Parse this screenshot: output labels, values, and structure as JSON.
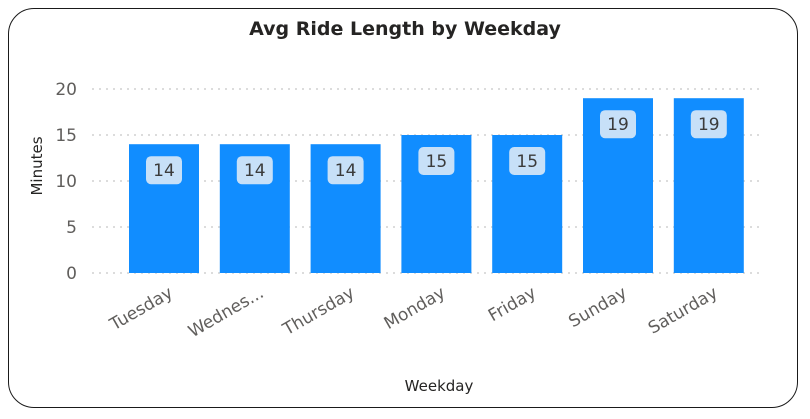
{
  "chart_data": {
    "type": "bar",
    "title": "Avg Ride Length by Weekday",
    "xlabel": "Weekday",
    "ylabel": "Minutes",
    "categories": [
      "Tuesday",
      "Wednes...",
      "Thursday",
      "Monday",
      "Friday",
      "Sunday",
      "Saturday"
    ],
    "values": [
      14,
      14,
      14,
      15,
      15,
      19,
      19
    ],
    "data_labels": [
      "14",
      "14",
      "14",
      "15",
      "15",
      "19",
      "19"
    ],
    "yticks": [
      0,
      5,
      10,
      15,
      20
    ],
    "ylim": [
      0,
      20
    ],
    "grid": true,
    "legend": false,
    "colors": {
      "bar": "#118DFF",
      "label_bg": "#C7E0F8",
      "label_text": "#3B3B3B",
      "grid": "#C8C8C8",
      "tick_text": "#605E5C"
    }
  }
}
